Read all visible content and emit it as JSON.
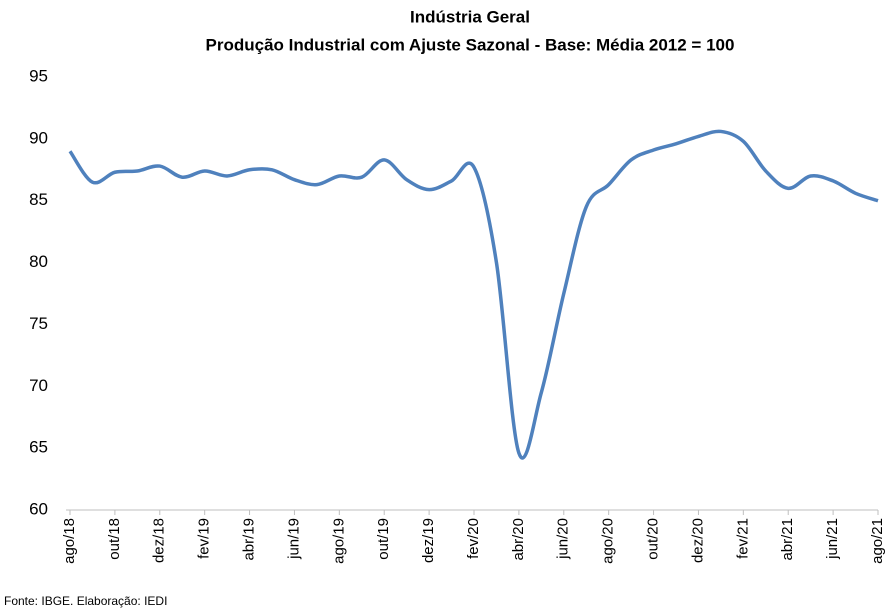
{
  "chart_data": {
    "type": "line",
    "title": "Indústria Geral",
    "subtitle": "Produção Industrial com Ajuste Sazonal - Base: Média 2012 = 100",
    "source": "Fonte: IBGE. Elaboração: IEDI",
    "categories": [
      "ago/18",
      null,
      "out/18",
      null,
      "dez/18",
      null,
      "fev/19",
      null,
      "abr/19",
      null,
      "jun/19",
      null,
      "ago/19",
      null,
      "out/19",
      null,
      "dez/19",
      null,
      "fev/20",
      null,
      "abr/20",
      null,
      "jun/20",
      null,
      "ago/20",
      null,
      "out/20",
      null,
      "dez/20",
      null,
      "fev/21",
      null,
      "abr/21",
      null,
      "jun/21",
      null,
      "ago/21"
    ],
    "series": [
      {
        "name": "Indústria Geral",
        "color": "#4f81bd",
        "values": [
          89.0,
          86.5,
          87.3,
          87.4,
          87.8,
          86.9,
          87.4,
          87.0,
          87.5,
          87.5,
          86.7,
          86.3,
          87.0,
          86.9,
          88.3,
          86.7,
          85.9,
          86.6,
          87.7,
          80.0,
          64.6,
          69.5,
          77.5,
          84.5,
          86.3,
          88.3,
          89.1,
          89.6,
          90.2,
          90.6,
          89.8,
          87.4,
          86.0,
          87.0,
          86.6,
          85.6,
          85.0
        ]
      }
    ],
    "ylim": [
      60,
      95
    ],
    "yticks": [
      60,
      65,
      70,
      75,
      80,
      85,
      90,
      95
    ],
    "grid": false
  }
}
